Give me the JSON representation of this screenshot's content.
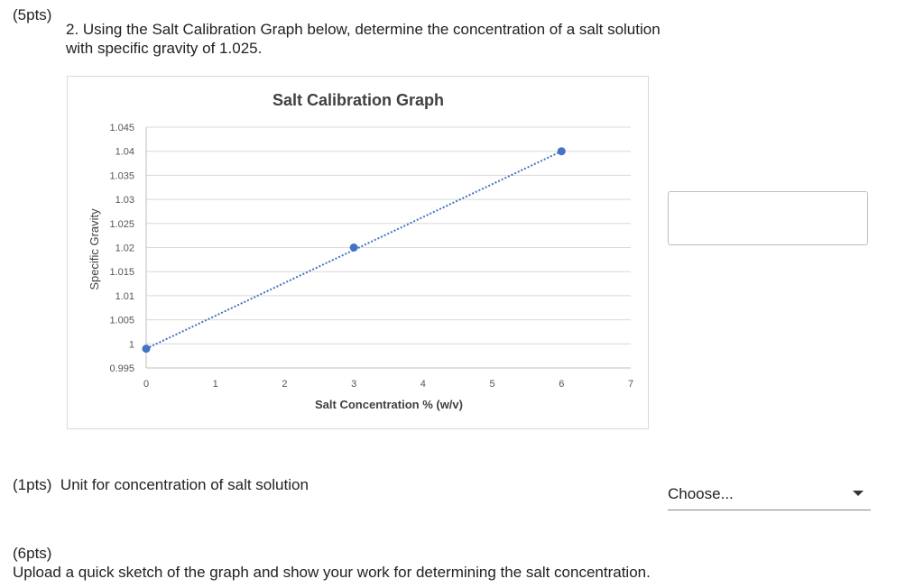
{
  "q2": {
    "points": "(5pts)",
    "text": "2. Using the Salt Calibration Graph below, determine the concentration of a salt solution with specific gravity of 1.025."
  },
  "chart_data": {
    "type": "scatter",
    "title": "Salt Calibration Graph",
    "xlabel": "Salt Concentration % (w/v)",
    "ylabel": "Specific Gravity",
    "xlim": [
      0,
      7
    ],
    "ylim": [
      0.995,
      1.045
    ],
    "x_ticks": [
      "0",
      "1",
      "2",
      "3",
      "4",
      "5",
      "6",
      "7"
    ],
    "y_ticks": [
      "0.995",
      "1",
      "1.005",
      "1.01",
      "1.015",
      "1.02",
      "1.025",
      "1.03",
      "1.035",
      "1.04",
      "1.045"
    ],
    "series": [
      {
        "x": [
          0,
          3,
          6
        ],
        "y": [
          0.999,
          1.02,
          1.04
        ],
        "color": "#4472c4"
      }
    ],
    "trendline": {
      "style": "dotted",
      "color": "#4472c4",
      "from": [
        0,
        0.999
      ],
      "to": [
        6,
        1.04
      ]
    },
    "grid": true
  },
  "answer": {
    "value": ""
  },
  "unit": {
    "points": "(1pts)",
    "label": "Unit for concentration of salt solution",
    "select_value": "Choose..."
  },
  "upload": {
    "points": "(6pts)",
    "text": "Upload a quick sketch of the graph and show your work for determining the salt concentration."
  }
}
